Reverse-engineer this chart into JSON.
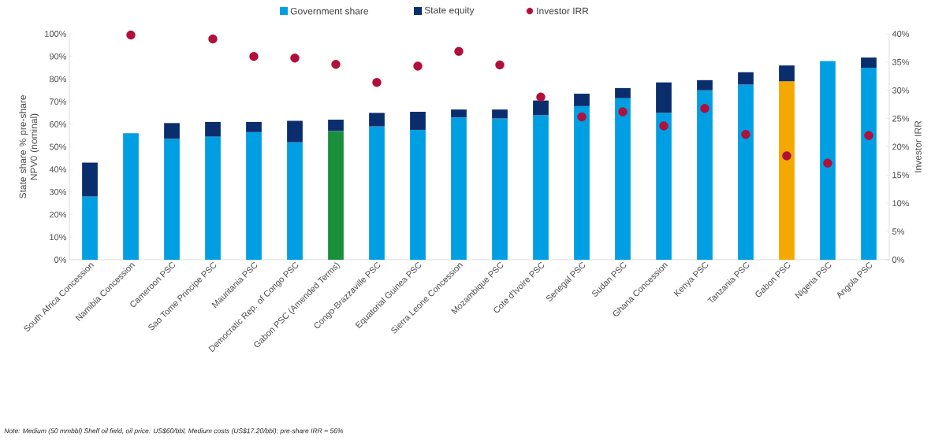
{
  "chart_data": {
    "type": "bar",
    "stacked": true,
    "title": null,
    "categories": [
      "South Africa Concession",
      "Namibia Concession",
      "Cameroon PSC",
      "Sao Tome Principe PSC",
      "Mauritania PSC",
      "Democratic Rep. of Congo PSC",
      "Gabon PSC (Amended Terms)",
      "Congo-Brazzaville PSC",
      "Equatorial Guinea PSC",
      "Sierra Leone Concession",
      "Mozambique PSC",
      "Cote d'Ivoire PSC",
      "Senegal PSC",
      "Sudan PSC",
      "Ghana Concession",
      "Kenya PSC",
      "Tanzania PSC",
      "Gabon PSC",
      "Nigeria PSC",
      "Angola PSC"
    ],
    "series": [
      {
        "name": "Government share",
        "color": "#009fe3",
        "colors": [
          "#009fe3",
          "#009fe3",
          "#009fe3",
          "#009fe3",
          "#009fe3",
          "#009fe3",
          "#1a8f3c",
          "#009fe3",
          "#009fe3",
          "#009fe3",
          "#009fe3",
          "#009fe3",
          "#009fe3",
          "#009fe3",
          "#009fe3",
          "#009fe3",
          "#009fe3",
          "#f5a800",
          "#009fe3",
          "#009fe3"
        ],
        "values": [
          28,
          56,
          53.5,
          54.5,
          56.5,
          52,
          57,
          59,
          57.5,
          63,
          62.5,
          64,
          68,
          71.5,
          65,
          75,
          77.5,
          79,
          88,
          85
        ]
      },
      {
        "name": "State equity",
        "color": "#0a2d6e",
        "values": [
          15,
          0,
          7,
          6.5,
          4.5,
          9.5,
          5,
          6,
          8,
          3.5,
          4,
          6.5,
          5.5,
          4.5,
          13.5,
          4.5,
          5.5,
          7,
          0,
          4.5
        ]
      },
      {
        "name": "Investor IRR",
        "type": "scatter",
        "axis": "y2",
        "color": "#b0103a",
        "values": [
          null,
          39.8,
          null,
          39.1,
          36.0,
          35.7,
          34.6,
          31.4,
          34.3,
          36.9,
          34.5,
          28.8,
          25.3,
          26.2,
          23.7,
          26.8,
          22.2,
          18.4,
          17.1,
          22.0
        ]
      }
    ],
    "ylim": [
      0,
      100
    ],
    "yticks": [
      {
        "value": 0,
        "label": "0%"
      },
      {
        "value": 10,
        "label": "10%"
      },
      {
        "value": 20,
        "label": "20%"
      },
      {
        "value": 30,
        "label": "30%"
      },
      {
        "value": 40,
        "label": "40%"
      },
      {
        "value": 50,
        "label": "50%"
      },
      {
        "value": 60,
        "label": "60%"
      },
      {
        "value": 70,
        "label": "70%"
      },
      {
        "value": 80,
        "label": "80%"
      },
      {
        "value": 90,
        "label": "90%"
      },
      {
        "value": 100,
        "label": "100%"
      }
    ],
    "y2lim": [
      0,
      40
    ],
    "y2ticks": [
      {
        "value": 0,
        "label": "0%"
      },
      {
        "value": 5,
        "label": "5%"
      },
      {
        "value": 10,
        "label": "10%"
      },
      {
        "value": 15,
        "label": "15%"
      },
      {
        "value": 20,
        "label": "20%"
      },
      {
        "value": 25,
        "label": "25%"
      },
      {
        "value": 30,
        "label": "30%"
      },
      {
        "value": 35,
        "label": "35%"
      },
      {
        "value": 40,
        "label": "40%"
      }
    ],
    "ylabel": "State share % pre-share NPV0 (nominal)",
    "y2label": "Investor IRR",
    "legend": "top",
    "marker": "circle",
    "grid": false,
    "annotations": [
      "Note: Medium (50 mmbbl) Shelf oil field, oil price: US$60/bbl, Medium costs (US$17.20/bbl); pre-share IRR = 56%"
    ]
  }
}
